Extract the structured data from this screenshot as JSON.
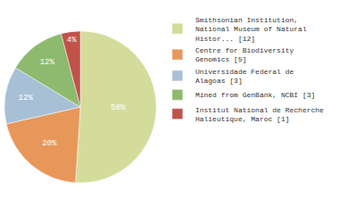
{
  "chart_data": {
    "type": "pie",
    "categories": [
      "Smithsonian Institution,\nNational Museum of Natural\nHistor... [12]",
      "Centre for Biodiversity\nGenomics [5]",
      "Universidade Federal de\nAlagoas [3]",
      "Mined from GenBank, NCBI [3]",
      "Institut National de Recherche\nHalieutique, Maroc [1]"
    ],
    "values": [
      50,
      20,
      12,
      12,
      4
    ],
    "value_labels": [
      "50%",
      "20%",
      "12%",
      "12%",
      "4%"
    ],
    "data_labels": true,
    "colors": [
      "#d4dc9b",
      "#e8975a",
      "#a8c0d6",
      "#8dba6e",
      "#c0524a"
    ],
    "legend": "right"
  }
}
